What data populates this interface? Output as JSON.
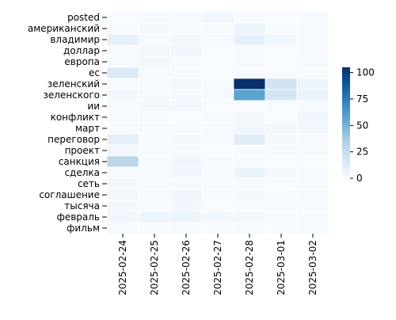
{
  "chart_data": {
    "type": "heatmap",
    "title": "",
    "xlabel": "",
    "ylabel": "",
    "x": [
      "2025-02-24",
      "2025-02-25",
      "2025-02-26",
      "2025-02-27",
      "2025-02-28",
      "2025-03-01",
      "2025-03-02"
    ],
    "y": [
      "posted",
      "американский",
      "владимир",
      "доллар",
      "европа",
      "ес",
      "зеленский",
      "зеленского",
      "ии",
      "конфликт",
      "март",
      "переговор",
      "проект",
      "санкция",
      "сделка",
      "сеть",
      "соглашение",
      "тысяча",
      "февраль",
      "фильм"
    ],
    "values": [
      [
        0,
        2,
        1,
        4,
        0,
        0,
        1
      ],
      [
        1,
        2,
        1,
        1,
        6,
        0,
        1
      ],
      [
        9,
        1,
        3,
        2,
        10,
        4,
        1
      ],
      [
        1,
        3,
        4,
        0,
        1,
        0,
        1
      ],
      [
        2,
        3,
        1,
        0,
        2,
        0,
        2
      ],
      [
        15,
        1,
        0,
        0,
        0,
        0,
        0
      ],
      [
        1,
        1,
        3,
        1,
        105,
        20,
        5
      ],
      [
        4,
        2,
        2,
        2,
        58,
        18,
        7
      ],
      [
        1,
        3,
        4,
        0,
        0,
        0,
        1
      ],
      [
        1,
        1,
        0,
        1,
        3,
        0,
        4
      ],
      [
        1,
        1,
        1,
        1,
        4,
        3,
        3
      ],
      [
        10,
        1,
        2,
        1,
        12,
        2,
        1
      ],
      [
        3,
        1,
        2,
        0,
        1,
        2,
        1
      ],
      [
        30,
        1,
        4,
        1,
        1,
        0,
        0
      ],
      [
        1,
        1,
        4,
        1,
        7,
        2,
        1
      ],
      [
        3,
        1,
        2,
        1,
        2,
        0,
        1
      ],
      [
        3,
        1,
        4,
        1,
        2,
        1,
        1
      ],
      [
        3,
        1,
        3,
        0,
        1,
        1,
        1
      ],
      [
        4,
        5,
        6,
        4,
        3,
        1,
        1
      ],
      [
        1,
        0,
        1,
        0,
        1,
        0,
        1
      ]
    ],
    "zlim": [
      0,
      105
    ],
    "colorbar_ticks": [
      0,
      25,
      50,
      75,
      100
    ],
    "colormap": "Blues",
    "grid": false,
    "legend_placement": "right"
  }
}
